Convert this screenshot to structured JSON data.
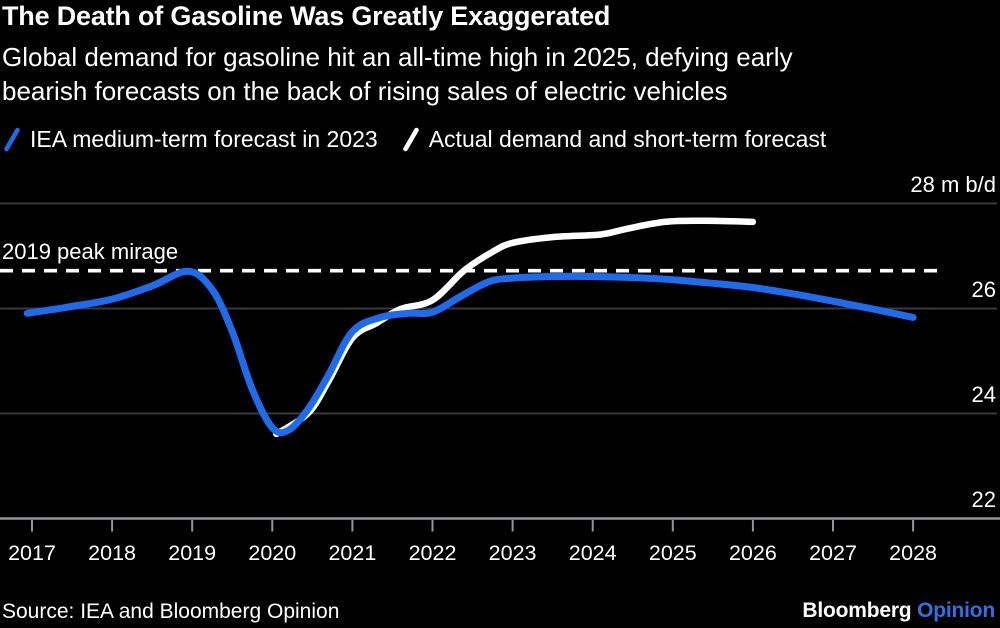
{
  "colors": {
    "background": "#000000",
    "text": "#FFFFFF",
    "blue": "#1E6CEB",
    "white_series": "#FFFFFF",
    "gridline": "#3A3A3C",
    "axis": "#95959A",
    "opinion_blue": "#3470E0"
  },
  "header": {
    "title": "The Death of Gasoline Was Greatly Exaggerated",
    "subtitle_lines": [
      "Global demand for gasoline hit an all-time high in 2025, defying early",
      "bearish forecasts on the back of rising sales of electric vehicles"
    ]
  },
  "legend": {
    "items": [
      {
        "label": "IEA medium-term forecast in 2023",
        "color": "#1E6CEB",
        "icon": "slash-icon"
      },
      {
        "label": "Actual demand and short-term forecast",
        "color": "#FFFFFF",
        "icon": "slash-icon"
      }
    ]
  },
  "chart_data": {
    "type": "line",
    "title": "The Death of Gasoline Was Greatly Exaggerated",
    "xlabel": "",
    "ylabel": "m b/d",
    "ylim": [
      22,
      28.45
    ],
    "x_domain": [
      2016.9,
      2028.35
    ],
    "grid": "horizontal",
    "legend_position": "top-left",
    "y_ticks": [
      22,
      24,
      26,
      28
    ],
    "y_tick_labels": [
      "22",
      "24",
      "26",
      "28 m b/d"
    ],
    "x_tick_years": [
      2017,
      2018,
      2019,
      2020,
      2021,
      2022,
      2023,
      2024,
      2025,
      2026,
      2027,
      2028
    ],
    "reference_line": {
      "label": "2019 peak mirage",
      "value": 26.71,
      "x_start": 2016.6,
      "x_end": 2028.3,
      "style": "dashed-white"
    },
    "series": [
      {
        "name": "IEA medium-term forecast in 2023",
        "color": "#1E6CEB",
        "points": [
          [
            2016.94,
            25.9
          ],
          [
            2017.5,
            26.03
          ],
          [
            2018.0,
            26.17
          ],
          [
            2018.5,
            26.42
          ],
          [
            2018.95,
            26.7
          ],
          [
            2019.25,
            26.35
          ],
          [
            2019.5,
            25.55
          ],
          [
            2019.75,
            24.45
          ],
          [
            2020.0,
            23.72
          ],
          [
            2020.2,
            23.67
          ],
          [
            2020.45,
            24.08
          ],
          [
            2020.7,
            24.72
          ],
          [
            2021.0,
            25.55
          ],
          [
            2021.35,
            25.82
          ],
          [
            2021.7,
            25.9
          ],
          [
            2022.0,
            25.92
          ],
          [
            2022.35,
            26.22
          ],
          [
            2022.7,
            26.5
          ],
          [
            2023.0,
            26.57
          ],
          [
            2023.5,
            26.6
          ],
          [
            2024.0,
            26.6
          ],
          [
            2024.5,
            26.58
          ],
          [
            2025.0,
            26.54
          ],
          [
            2025.5,
            26.47
          ],
          [
            2026.0,
            26.39
          ],
          [
            2026.5,
            26.27
          ],
          [
            2027.0,
            26.13
          ],
          [
            2027.5,
            25.98
          ],
          [
            2028.0,
            25.82
          ]
        ]
      },
      {
        "name": "Actual demand and short-term forecast",
        "color": "#FFFFFF",
        "points": [
          [
            2020.05,
            23.6
          ],
          [
            2020.45,
            24.0
          ],
          [
            2020.7,
            24.6
          ],
          [
            2021.0,
            25.43
          ],
          [
            2021.3,
            25.71
          ],
          [
            2021.6,
            25.98
          ],
          [
            2022.0,
            26.15
          ],
          [
            2022.4,
            26.72
          ],
          [
            2022.75,
            27.07
          ],
          [
            2023.0,
            27.24
          ],
          [
            2023.5,
            27.35
          ],
          [
            2024.1,
            27.4
          ],
          [
            2024.4,
            27.5
          ],
          [
            2024.9,
            27.64
          ],
          [
            2025.4,
            27.66
          ],
          [
            2026.0,
            27.64
          ]
        ]
      }
    ]
  },
  "footer": {
    "source": "Source: IEA and Bloomberg Opinion",
    "logo": {
      "primary": "Bloomberg",
      "secondary": "Opinion"
    }
  }
}
